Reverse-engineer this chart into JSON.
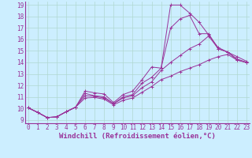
{
  "background_color": "#cceeff",
  "grid_color": "#b0d8d0",
  "line_color": "#993399",
  "xlim": [
    0,
    23
  ],
  "ylim": [
    9,
    19
  ],
  "xticks": [
    0,
    1,
    2,
    3,
    4,
    5,
    6,
    7,
    8,
    9,
    10,
    11,
    12,
    13,
    14,
    15,
    16,
    17,
    18,
    19,
    20,
    21,
    22,
    23
  ],
  "yticks": [
    9,
    10,
    11,
    12,
    13,
    14,
    15,
    16,
    17,
    18,
    19
  ],
  "xlabel": "Windchill (Refroidissement éolien,°C)",
  "lines": [
    {
      "x": [
        0,
        1,
        2,
        3,
        4,
        5,
        6,
        7,
        8,
        9,
        10,
        11,
        12,
        13,
        14,
        15,
        16,
        17,
        18,
        19,
        20,
        21,
        22,
        23
      ],
      "y": [
        10.05,
        9.65,
        9.2,
        9.25,
        9.7,
        10.1,
        11.5,
        11.35,
        11.25,
        10.5,
        11.2,
        11.5,
        12.5,
        13.6,
        13.5,
        19.0,
        19.0,
        18.3,
        17.5,
        16.4,
        15.3,
        14.9,
        14.5,
        14.1
      ]
    },
    {
      "x": [
        0,
        1,
        2,
        3,
        4,
        5,
        6,
        7,
        8,
        9,
        10,
        11,
        12,
        13,
        14,
        15,
        16,
        17,
        18,
        19,
        20,
        21,
        22,
        23
      ],
      "y": [
        10.05,
        9.65,
        9.2,
        9.25,
        9.7,
        10.1,
        11.3,
        11.1,
        11.0,
        10.4,
        11.0,
        11.2,
        12.2,
        12.7,
        13.5,
        17.0,
        17.8,
        18.1,
        16.5,
        16.5,
        15.2,
        14.9,
        14.2,
        14.0
      ]
    },
    {
      "x": [
        0,
        1,
        2,
        3,
        4,
        5,
        6,
        7,
        8,
        9,
        10,
        11,
        12,
        13,
        14,
        15,
        16,
        17,
        18,
        19,
        20,
        21,
        22,
        23
      ],
      "y": [
        10.05,
        9.65,
        9.2,
        9.25,
        9.7,
        10.1,
        11.1,
        11.05,
        10.9,
        10.4,
        10.9,
        11.1,
        11.8,
        12.3,
        13.3,
        14.0,
        14.6,
        15.2,
        15.6,
        16.3,
        15.2,
        14.9,
        14.3,
        14.0
      ]
    },
    {
      "x": [
        0,
        1,
        2,
        3,
        4,
        5,
        6,
        7,
        8,
        9,
        10,
        11,
        12,
        13,
        14,
        15,
        16,
        17,
        18,
        19,
        20,
        21,
        22,
        23
      ],
      "y": [
        10.05,
        9.65,
        9.2,
        9.25,
        9.7,
        10.1,
        10.9,
        10.95,
        10.8,
        10.3,
        10.7,
        10.9,
        11.4,
        11.9,
        12.5,
        12.8,
        13.2,
        13.5,
        13.8,
        14.2,
        14.5,
        14.7,
        14.2,
        14.0
      ]
    }
  ],
  "tick_fontsize": 5.5,
  "xlabel_fontsize": 6.5
}
